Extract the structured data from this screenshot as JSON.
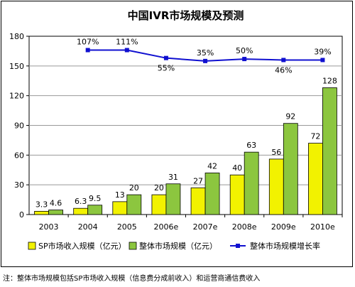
{
  "chart_data": {
    "type": "bar",
    "title": "中国IVR市场规模及预测",
    "categories": [
      "2003",
      "2004",
      "2005",
      "2006e",
      "2007e",
      "2008e",
      "2009e",
      "2010e"
    ],
    "series": [
      {
        "name": "SP市场收入规模（亿元）",
        "kind": "bar",
        "color": "#f2f200",
        "values": [
          3.3,
          6.3,
          13,
          20,
          27,
          40,
          56,
          72
        ],
        "labels": [
          "3.3",
          "6.3",
          "13",
          "20",
          "27",
          "40",
          "56",
          "72"
        ]
      },
      {
        "name": "整体市场规模（亿元）",
        "kind": "bar",
        "color": "#8cc63f",
        "values": [
          4.6,
          9.5,
          20,
          31,
          42,
          63,
          92,
          128
        ],
        "labels": [
          "4.6",
          "9.5",
          "20",
          "31",
          "42",
          "63",
          "92",
          "128"
        ]
      },
      {
        "name": "整体市场规模增长率",
        "kind": "line",
        "color": "#1010d0",
        "values": [
          null,
          107,
          111,
          55,
          35,
          50,
          46,
          39
        ],
        "labels": [
          "",
          "107%",
          "111%",
          "55%",
          "35%",
          "50%",
          "46%",
          "39%"
        ],
        "plot_y": [
          null,
          166,
          166,
          158,
          155,
          157,
          156,
          156
        ]
      }
    ],
    "ylim": [
      0,
      180
    ],
    "yticks": [
      "0",
      "30",
      "60",
      "90",
      "120",
      "150",
      "180"
    ],
    "grid": true,
    "legend": "bottom"
  },
  "note": "注：整体市场规模包括SP市场收入规模（信息费分成前收入）和运营商通信费收入"
}
